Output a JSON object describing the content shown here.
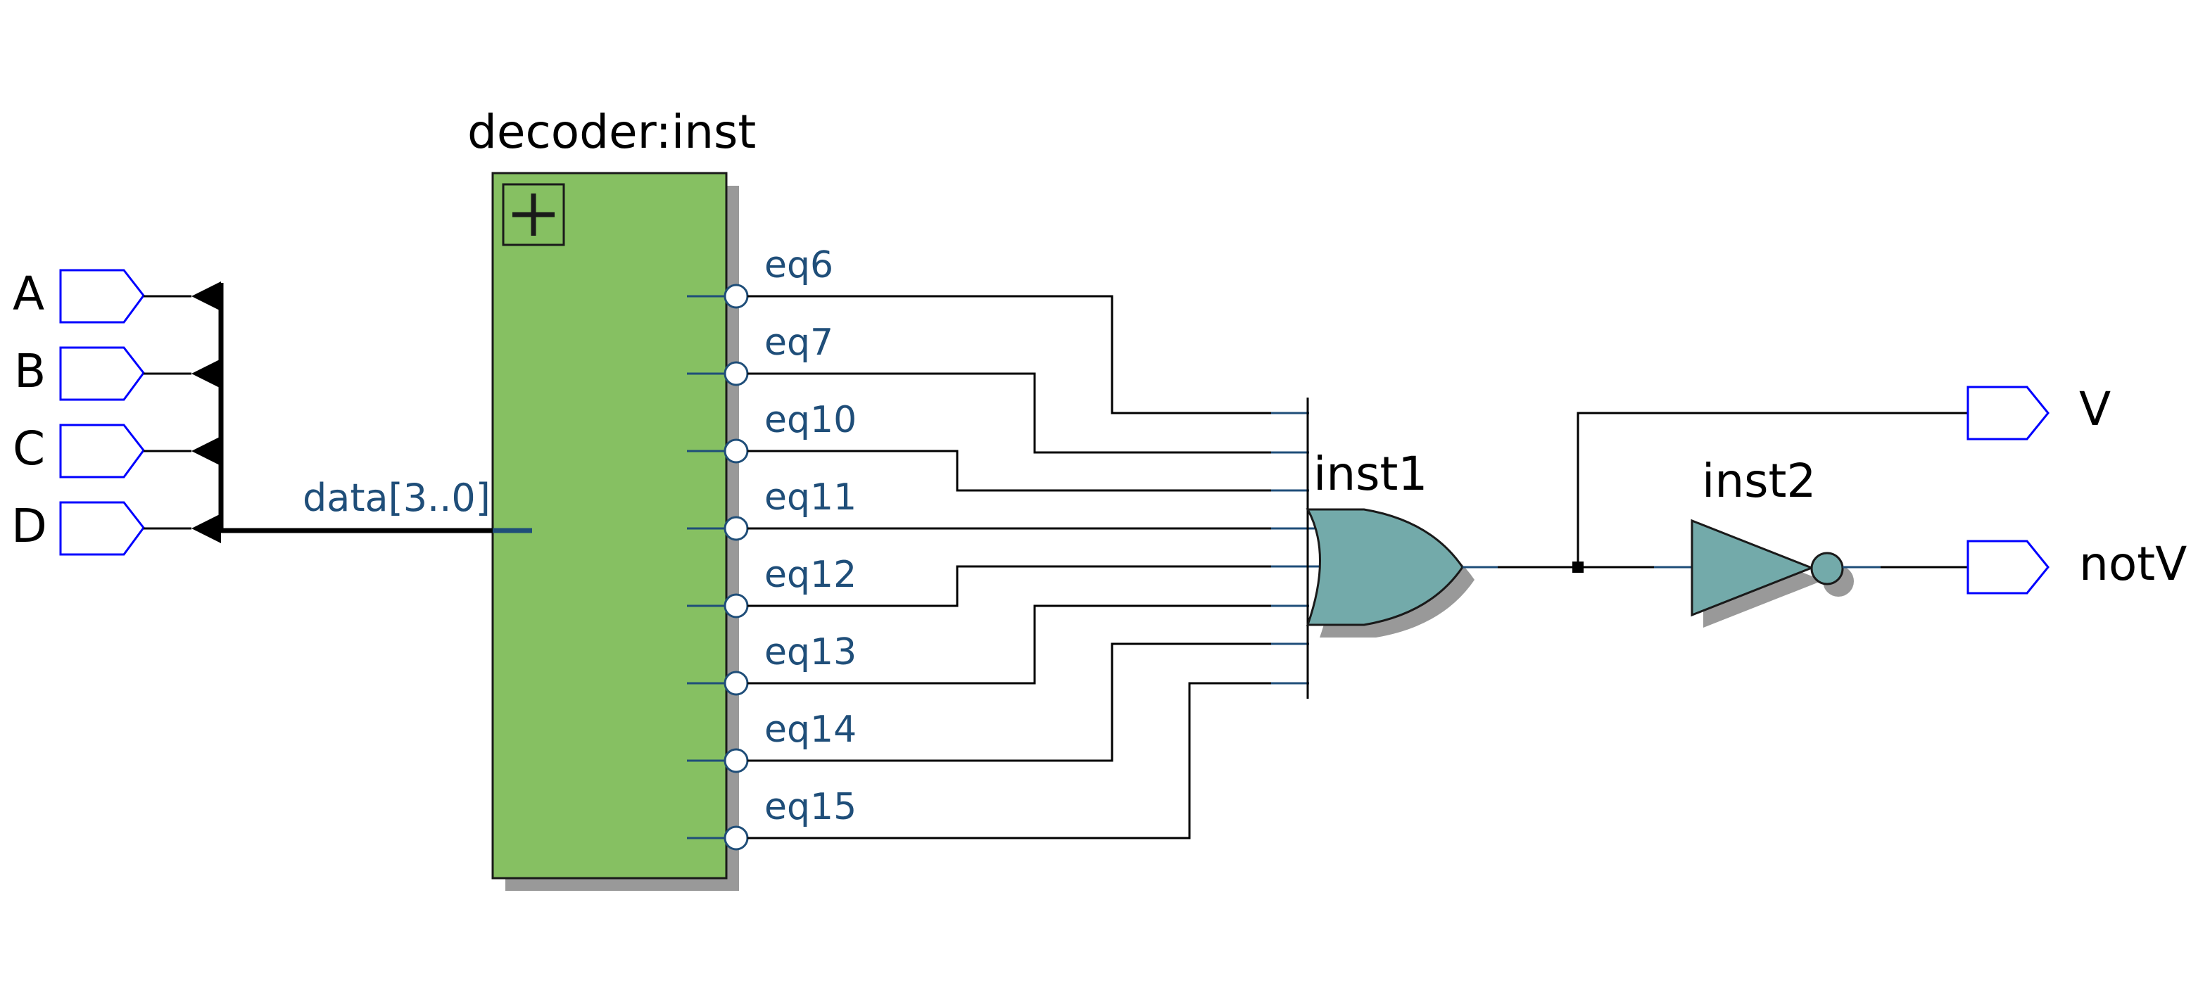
{
  "inputs": [
    "A",
    "B",
    "C",
    "D"
  ],
  "bus_label": "data[3..0]",
  "decoder": {
    "name": "decoder:inst",
    "outputs": [
      "eq6",
      "eq7",
      "eq10",
      "eq11",
      "eq12",
      "eq13",
      "eq14",
      "eq15"
    ]
  },
  "or_gate": {
    "name": "inst1"
  },
  "not_gate": {
    "name": "inst2"
  },
  "outputs": [
    "V",
    "notV"
  ],
  "colors": {
    "decoder_fill": "#86c062",
    "gate_fill": "#73aaaa",
    "pin_stroke": "#0000ff",
    "port_label": "#1f4e79",
    "shadow": "#999999"
  }
}
